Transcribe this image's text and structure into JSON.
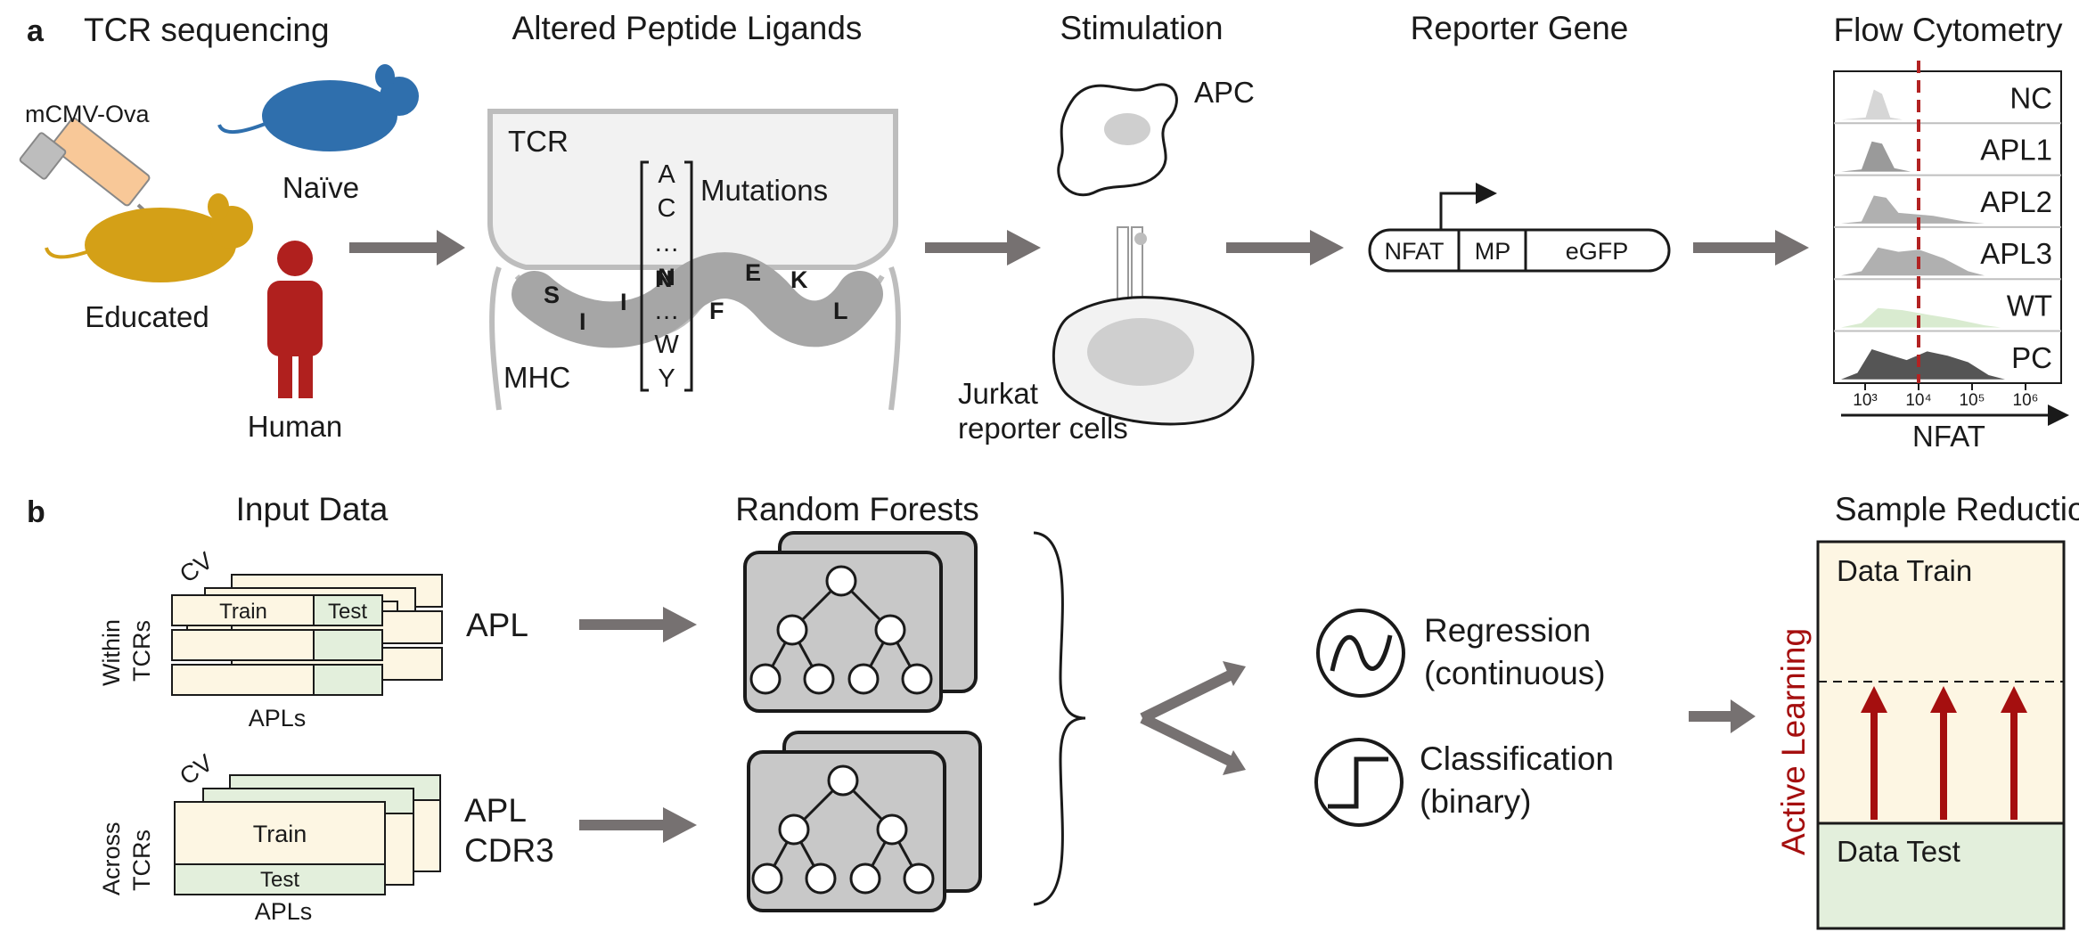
{
  "panel_a": {
    "label": "a",
    "titles": {
      "tcr_sequencing": "TCR sequencing",
      "apl": "Altered Peptide Ligands",
      "stimulation": "Stimulation",
      "reporter": "Reporter Gene",
      "flow": "Flow Cytometry"
    },
    "mcmv": "mCMV-Ova",
    "naive": "Naïve",
    "educated": "Educated",
    "human": "Human",
    "tcr": "TCR",
    "mhc": "MHC",
    "mutations": "Mutations",
    "peptide_residues": [
      "S",
      "I",
      "I",
      "N",
      "F",
      "E",
      "K",
      "L"
    ],
    "mutation_column": [
      "A",
      "C",
      "…",
      "N",
      "…",
      "W",
      "Y"
    ],
    "apc": "APC",
    "jurkat": [
      "Jurkat",
      "reporter cells"
    ],
    "construct": [
      "NFAT",
      "MP",
      "eGFP"
    ],
    "flow_rows": [
      "NC",
      "APL1",
      "APL2",
      "APL3",
      "WT",
      "PC"
    ],
    "flow_row_colors": [
      "#d6d6d6",
      "#9a9a9a",
      "#b0b0b0",
      "#b0b0b0",
      "#d9ebd0",
      "#555555"
    ],
    "flow_ticks": [
      "10³",
      "10⁴",
      "10⁵",
      "10⁶"
    ],
    "flow_xlabel": "NFAT",
    "threshold_color": "#b22222"
  },
  "panel_b": {
    "label": "b",
    "titles": {
      "input": "Input Data",
      "forests": "Random Forests",
      "sample": "Sample Reduction"
    },
    "cv": "CV",
    "within": [
      "Within",
      "TCRs"
    ],
    "across": [
      "Across",
      "TCRs"
    ],
    "train": "Train",
    "test": "Test",
    "apls": "APLs",
    "features_top": [
      "APL"
    ],
    "features_bottom": [
      "APL",
      "CDR3"
    ],
    "regression": [
      "Regression",
      "(continuous)"
    ],
    "classification": [
      "Classification",
      "(binary)"
    ],
    "data_train": "Data Train",
    "data_test": "Data Test",
    "active_learning": "Active Learning",
    "train_color": "#fdf6e3",
    "test_color": "#e3efdc",
    "accent_color": "#a50f0f"
  }
}
